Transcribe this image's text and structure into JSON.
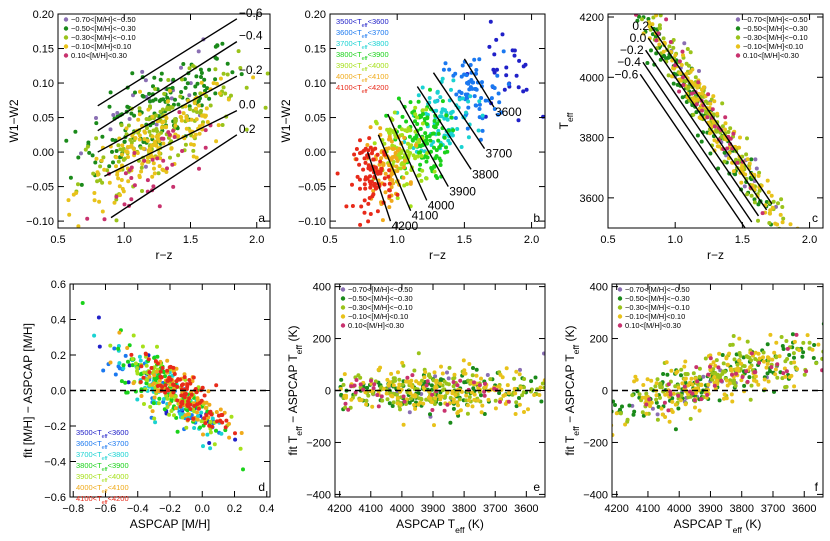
{
  "colors": {
    "metal_bins": [
      "#8a6fb3",
      "#1a8a1a",
      "#9ac31a",
      "#e8c21a",
      "#c8326e"
    ],
    "teff_bins": [
      "#2020c8",
      "#1a78f0",
      "#1ad2d2",
      "#1ad21a",
      "#a6e01a",
      "#f0aa1a",
      "#e82a1a"
    ]
  },
  "legends": {
    "metal": [
      "−0.70<[M/H]<−0.50",
      "−0.50<[M/H]<−0.30",
      "−0.30<[M/H]<−0.10",
      "−0.10<[M/H]<0.10",
      "0.10<[M/H]<0.30"
    ],
    "teff": [
      {
        "pre": "3500<T",
        "sub": "eff",
        "post": "<3600"
      },
      {
        "pre": "3600<T",
        "sub": "eff",
        "post": "<3700"
      },
      {
        "pre": "3700<T",
        "sub": "eff",
        "post": "<3800"
      },
      {
        "pre": "3800<T",
        "sub": "eff",
        "post": "<3900"
      },
      {
        "pre": "3900<T",
        "sub": "eff",
        "post": "<4000"
      },
      {
        "pre": "4000<T",
        "sub": "eff",
        "post": "<4100"
      },
      {
        "pre": "4100<T",
        "sub": "eff",
        "post": "<4200"
      }
    ]
  },
  "chart_data": [
    {
      "panel": "a",
      "type": "scatter",
      "xlabel": "r−z",
      "ylabel": "W1−W2",
      "xlim": [
        0.5,
        2.1
      ],
      "ylim": [
        -0.11,
        0.2
      ],
      "xticks": [
        0.5,
        1.0,
        1.5,
        2.0
      ],
      "yticks": [
        -0.1,
        -0.05,
        0.0,
        0.05,
        0.1,
        0.15,
        0.2
      ],
      "legend": "metal",
      "legend_position": "top-left",
      "lines": [
        {
          "label": "−0.6",
          "x": [
            0.8,
            1.85
          ],
          "y": [
            0.067,
            0.193
          ]
        },
        {
          "label": "−0.4",
          "x": [
            0.8,
            1.85
          ],
          "y": [
            0.031,
            0.16
          ]
        },
        {
          "label": "−0.2",
          "x": [
            0.8,
            1.85
          ],
          "y": [
            0.0,
            0.11
          ]
        },
        {
          "label": "0.0",
          "x": [
            0.85,
            1.85
          ],
          "y": [
            -0.035,
            0.06
          ]
        },
        {
          "label": "0.2",
          "x": [
            0.9,
            1.85
          ],
          "y": [
            -0.095,
            0.025
          ]
        }
      ],
      "groups": [
        {
          "bin": 0,
          "count": 25,
          "center": [
            1.25,
            0.08
          ],
          "slope": 0.11,
          "spread": [
            0.28,
            0.035
          ]
        },
        {
          "bin": 1,
          "count": 140,
          "center": [
            1.25,
            0.06
          ],
          "slope": 0.11,
          "spread": [
            0.3,
            0.03
          ]
        },
        {
          "bin": 2,
          "count": 150,
          "center": [
            1.25,
            0.03
          ],
          "slope": 0.11,
          "spread": [
            0.3,
            0.028
          ]
        },
        {
          "bin": 3,
          "count": 170,
          "center": [
            1.25,
            0.01
          ],
          "slope": 0.11,
          "spread": [
            0.3,
            0.028
          ]
        },
        {
          "bin": 4,
          "count": 40,
          "center": [
            1.25,
            -0.02
          ],
          "slope": 0.11,
          "spread": [
            0.28,
            0.025
          ]
        }
      ]
    },
    {
      "panel": "b",
      "type": "scatter",
      "xlabel": "r−z",
      "ylabel": "W1−W2",
      "xlim": [
        0.5,
        2.1
      ],
      "ylim": [
        -0.11,
        0.2
      ],
      "xticks": [
        0.5,
        1.0,
        1.5,
        2.0
      ],
      "yticks": [
        -0.1,
        -0.05,
        0.0,
        0.05,
        0.1,
        0.15,
        0.2
      ],
      "legend": "teff",
      "legend_position": "top-left",
      "lines": [
        {
          "label": "3600",
          "x": [
            1.5,
            1.72
          ],
          "y": [
            0.135,
            0.065
          ]
        },
        {
          "label": "3700",
          "x": [
            1.27,
            1.65
          ],
          "y": [
            0.115,
            0.005
          ]
        },
        {
          "label": "3800",
          "x": [
            1.15,
            1.55
          ],
          "y": [
            0.095,
            -0.025
          ]
        },
        {
          "label": "3900",
          "x": [
            1.02,
            1.38
          ],
          "y": [
            0.075,
            -0.05
          ]
        },
        {
          "label": "4000",
          "x": [
            0.93,
            1.22
          ],
          "y": [
            0.055,
            -0.07
          ]
        },
        {
          "label": "4100",
          "x": [
            0.86,
            1.1
          ],
          "y": [
            0.025,
            -0.085
          ]
        },
        {
          "label": "4200",
          "x": [
            0.78,
            0.95
          ],
          "y": [
            0.0,
            -0.1
          ]
        }
      ],
      "groups": [
        {
          "bin": 0,
          "count": 30,
          "center": [
            1.8,
            0.11
          ],
          "slope": 0.0,
          "spread": [
            0.12,
            0.035
          ]
        },
        {
          "bin": 1,
          "count": 70,
          "center": [
            1.55,
            0.085
          ],
          "slope": 0.0,
          "spread": [
            0.12,
            0.03
          ]
        },
        {
          "bin": 2,
          "count": 90,
          "center": [
            1.35,
            0.05
          ],
          "slope": 0.0,
          "spread": [
            0.12,
            0.03
          ]
        },
        {
          "bin": 3,
          "count": 110,
          "center": [
            1.18,
            0.02
          ],
          "slope": 0.0,
          "spread": [
            0.1,
            0.03
          ]
        },
        {
          "bin": 4,
          "count": 100,
          "center": [
            1.05,
            0.0
          ],
          "slope": 0.0,
          "spread": [
            0.1,
            0.03
          ]
        },
        {
          "bin": 5,
          "count": 90,
          "center": [
            0.93,
            -0.02
          ],
          "slope": 0.0,
          "spread": [
            0.08,
            0.025
          ]
        },
        {
          "bin": 6,
          "count": 90,
          "center": [
            0.82,
            -0.035
          ],
          "slope": 0.0,
          "spread": [
            0.07,
            0.025
          ]
        }
      ]
    },
    {
      "panel": "c",
      "type": "scatter",
      "xlabel": "r−z",
      "ylabel": "T",
      "ylabel_sub": "eff",
      "xlim": [
        0.5,
        2.1
      ],
      "ylim": [
        3500,
        4210
      ],
      "xticks": [
        0.5,
        1.0,
        1.5,
        2.0
      ],
      "yticks": [
        3600,
        3800,
        4000,
        4200
      ],
      "legend": "metal",
      "legend_position": "top-right",
      "lines": [
        {
          "label": "0.2",
          "x": [
            0.82,
            1.72
          ],
          "y": [
            4170,
            3580
          ]
        },
        {
          "label": "0.0",
          "x": [
            0.8,
            1.68
          ],
          "y": [
            4130,
            3560
          ]
        },
        {
          "label": "−0.2",
          "x": [
            0.78,
            1.62
          ],
          "y": [
            4090,
            3540
          ]
        },
        {
          "label": "−0.4",
          "x": [
            0.76,
            1.57
          ],
          "y": [
            4050,
            3520
          ]
        },
        {
          "label": "−0.6",
          "x": [
            0.74,
            1.52
          ],
          "y": [
            4010,
            3500
          ]
        }
      ],
      "groups": [
        {
          "bin": 0,
          "count": 20,
          "center": [
            1.25,
            3900
          ],
          "slope": -700,
          "spread": [
            0.3,
            45
          ]
        },
        {
          "bin": 1,
          "count": 130,
          "center": [
            1.2,
            3880
          ],
          "slope": -700,
          "spread": [
            0.32,
            40
          ]
        },
        {
          "bin": 2,
          "count": 150,
          "center": [
            1.25,
            3880
          ],
          "slope": -700,
          "spread": [
            0.33,
            40
          ]
        },
        {
          "bin": 3,
          "count": 170,
          "center": [
            1.25,
            3880
          ],
          "slope": -700,
          "spread": [
            0.33,
            40
          ]
        },
        {
          "bin": 4,
          "count": 40,
          "center": [
            1.2,
            3920
          ],
          "slope": -700,
          "spread": [
            0.3,
            40
          ]
        }
      ]
    },
    {
      "panel": "d",
      "type": "scatter",
      "xlabel": "ASPCAP [M/H]",
      "ylabel": "fit [M/H] − ASPCAP [M/H]",
      "xlim": [
        -0.82,
        0.42
      ],
      "ylim": [
        -0.6,
        0.6
      ],
      "xticks": [
        -0.8,
        -0.6,
        -0.4,
        -0.2,
        0.0,
        0.2,
        0.4
      ],
      "yticks": [
        -0.6,
        -0.4,
        -0.2,
        0.0,
        0.2,
        0.4,
        0.6
      ],
      "legend": "teff",
      "legend_position": "bottom-left",
      "hline": 0.0,
      "groups": [
        {
          "bin": 0,
          "count": 20,
          "center": [
            -0.2,
            0.0
          ],
          "slope": -0.6,
          "spread": [
            0.18,
            0.08
          ]
        },
        {
          "bin": 1,
          "count": 40,
          "center": [
            -0.25,
            0.0
          ],
          "slope": -0.6,
          "spread": [
            0.18,
            0.08
          ]
        },
        {
          "bin": 2,
          "count": 70,
          "center": [
            -0.2,
            -0.02
          ],
          "slope": -0.6,
          "spread": [
            0.18,
            0.09
          ]
        },
        {
          "bin": 3,
          "count": 90,
          "center": [
            -0.2,
            0.0
          ],
          "slope": -0.6,
          "spread": [
            0.16,
            0.08
          ]
        },
        {
          "bin": 4,
          "count": 90,
          "center": [
            -0.2,
            0.0
          ],
          "slope": -0.6,
          "spread": [
            0.16,
            0.08
          ]
        },
        {
          "bin": 5,
          "count": 80,
          "center": [
            -0.15,
            0.0
          ],
          "slope": -0.6,
          "spread": [
            0.15,
            0.07
          ]
        },
        {
          "bin": 6,
          "count": 100,
          "center": [
            -0.12,
            -0.01
          ],
          "slope": -0.6,
          "spread": [
            0.13,
            0.06
          ]
        }
      ]
    },
    {
      "panel": "e",
      "type": "scatter",
      "xlabel": "ASPCAP T",
      "xlabel_sub": "eff",
      "xlabel_post": " (K)",
      "ylabel": "fit T",
      "ylabel_sub": "eff",
      "ylabel_post": " − ASPCAP T",
      "ylabel_sub2": "eff",
      "ylabel_post2": " (K)",
      "xlim": [
        4215,
        3540
      ],
      "ylim": [
        -410,
        410
      ],
      "xticks": [
        4200,
        4100,
        4000,
        3900,
        3800,
        3700,
        3600
      ],
      "yticks": [
        -400,
        -200,
        0,
        200,
        400
      ],
      "legend": "metal",
      "legend_position": "top-left",
      "hline": 0,
      "groups": [
        {
          "bin": 0,
          "count": 20,
          "center": [
            3880,
            0
          ],
          "slope": 0.0,
          "spread": [
            170,
            40
          ]
        },
        {
          "bin": 1,
          "count": 130,
          "center": [
            3880,
            -5
          ],
          "slope": 0.0,
          "spread": [
            180,
            40
          ]
        },
        {
          "bin": 2,
          "count": 150,
          "center": [
            3880,
            0
          ],
          "slope": 0.0,
          "spread": [
            180,
            40
          ]
        },
        {
          "bin": 3,
          "count": 170,
          "center": [
            3880,
            5
          ],
          "slope": 0.0,
          "spread": [
            180,
            45
          ]
        },
        {
          "bin": 4,
          "count": 40,
          "center": [
            3900,
            0
          ],
          "slope": 0.0,
          "spread": [
            170,
            40
          ]
        }
      ]
    },
    {
      "panel": "f",
      "type": "scatter",
      "xlabel": "ASPCAP T",
      "xlabel_sub": "eff",
      "xlabel_post": " (K)",
      "ylabel": "fit T",
      "ylabel_sub": "eff",
      "ylabel_post": " − ASPCAP T",
      "ylabel_sub2": "eff",
      "ylabel_post2": " (K)",
      "xlim": [
        4215,
        3540
      ],
      "ylim": [
        -410,
        410
      ],
      "xticks": [
        4200,
        4100,
        4000,
        3900,
        3800,
        3700,
        3600
      ],
      "yticks": [
        -400,
        -200,
        0,
        200,
        400
      ],
      "legend": "metal",
      "legend_position": "top-left",
      "hline": 0,
      "groups": [
        {
          "bin": 0,
          "count": 20,
          "center": [
            3900,
            20
          ],
          "slope": -0.35,
          "spread": [
            170,
            40
          ]
        },
        {
          "bin": 1,
          "count": 130,
          "center": [
            3900,
            30
          ],
          "slope": -0.35,
          "spread": [
            180,
            45
          ]
        },
        {
          "bin": 2,
          "count": 150,
          "center": [
            3900,
            35
          ],
          "slope": -0.35,
          "spread": [
            180,
            45
          ]
        },
        {
          "bin": 3,
          "count": 170,
          "center": [
            3900,
            40
          ],
          "slope": -0.35,
          "spread": [
            180,
            50
          ]
        },
        {
          "bin": 4,
          "count": 40,
          "center": [
            3900,
            30
          ],
          "slope": -0.35,
          "spread": [
            170,
            45
          ]
        }
      ]
    }
  ]
}
